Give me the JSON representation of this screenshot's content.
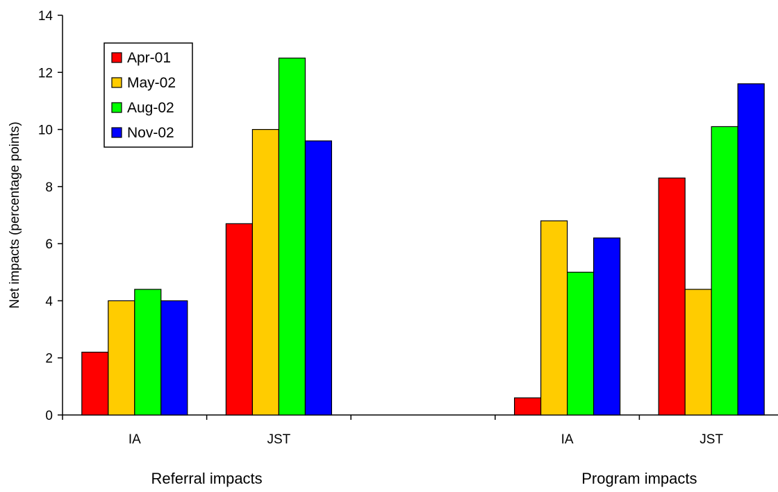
{
  "chart_data": {
    "type": "bar",
    "title": "",
    "xlabel": "",
    "ylabel": "Net impacts (percentage points)",
    "ylim": [
      0,
      14
    ],
    "yticks": [
      0,
      2,
      4,
      6,
      8,
      10,
      12,
      14
    ],
    "grid": false,
    "legend_position": "top-left",
    "groups": [
      {
        "label": "Referral impacts",
        "categories": [
          "IA",
          "JST"
        ]
      },
      {
        "label": "Program impacts",
        "categories": [
          "IA",
          "JST"
        ]
      }
    ],
    "categories": [
      "IA",
      "JST",
      "",
      "IA",
      "JST"
    ],
    "series": [
      {
        "name": "Apr-01",
        "color": "#ff0000",
        "values": [
          2.2,
          6.7,
          null,
          0.6,
          8.3
        ]
      },
      {
        "name": "May-02",
        "color": "#ffcc00",
        "values": [
          4.0,
          10.0,
          null,
          6.8,
          4.4
        ]
      },
      {
        "name": "Aug-02",
        "color": "#00ff00",
        "values": [
          4.4,
          12.5,
          null,
          5.0,
          10.1
        ]
      },
      {
        "name": "Nov-02",
        "color": "#0000ff",
        "values": [
          4.0,
          9.6,
          null,
          6.2,
          11.6
        ]
      }
    ]
  }
}
